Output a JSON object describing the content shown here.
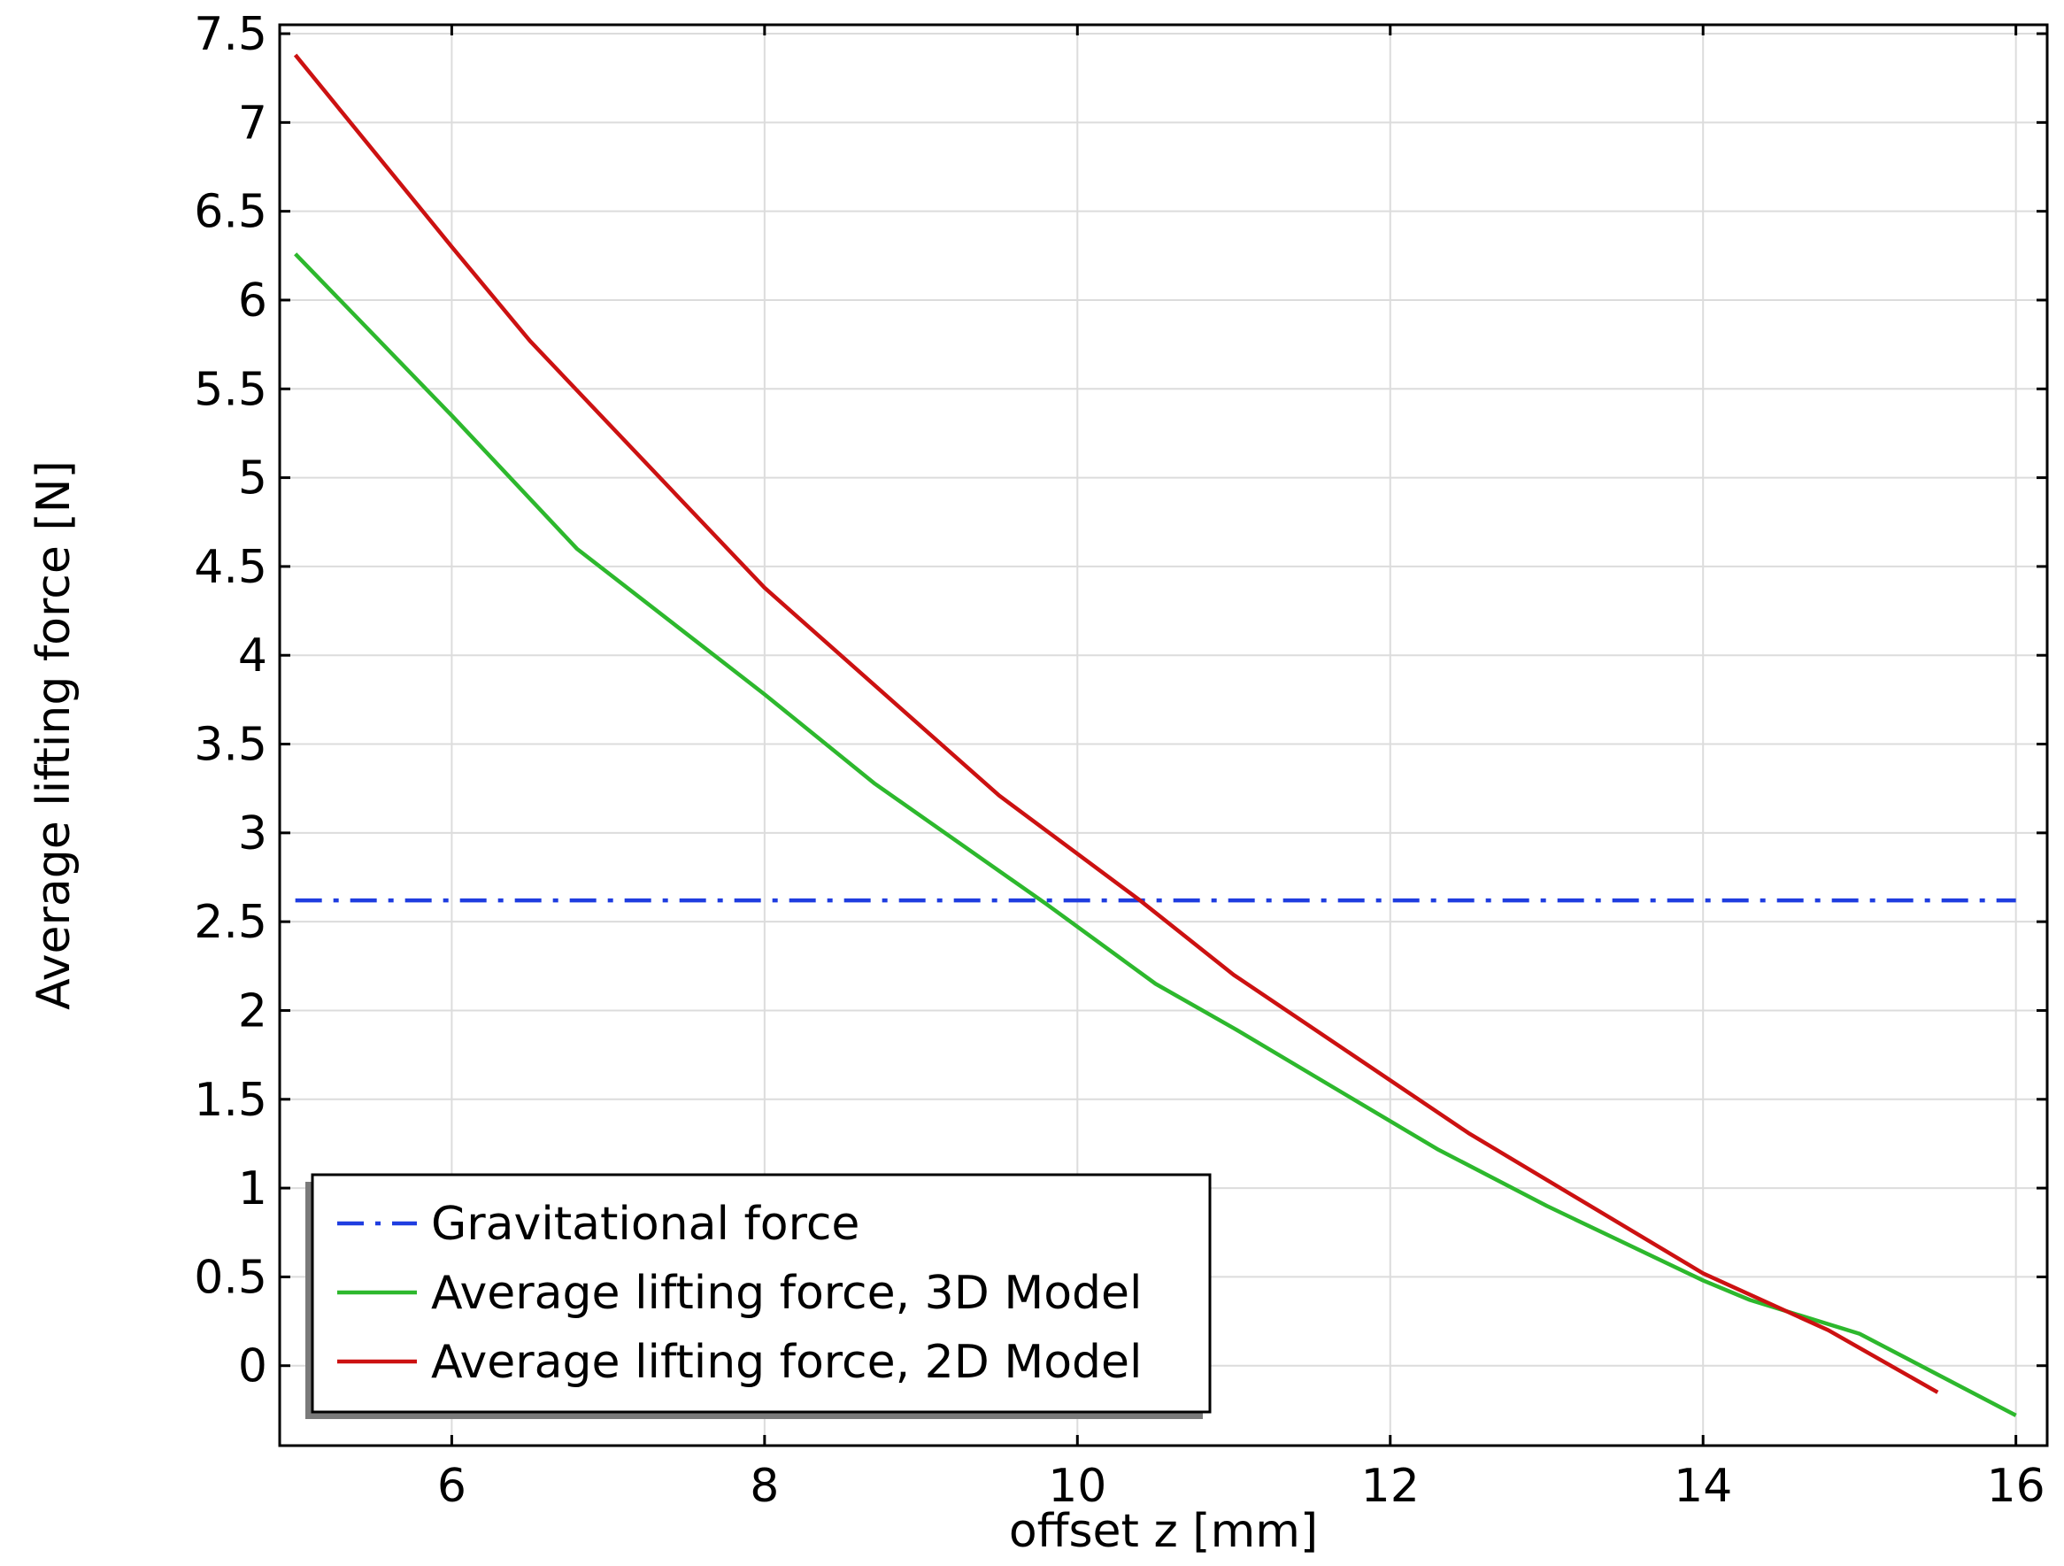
{
  "chart_data": {
    "type": "line",
    "title": "",
    "xlabel": "offset z [mm]",
    "ylabel": "Average lifting force [N]",
    "xlim": [
      4.9,
      16.2
    ],
    "ylim": [
      -0.45,
      7.55
    ],
    "xticks": [
      6,
      8,
      10,
      12,
      14,
      16
    ],
    "xtick_labels": [
      "6",
      "8",
      "10",
      "12",
      "14",
      "16"
    ],
    "yticks": [
      0,
      0.5,
      1,
      1.5,
      2,
      2.5,
      3,
      3.5,
      4,
      4.5,
      5,
      5.5,
      6,
      6.5,
      7,
      7.5
    ],
    "ytick_labels": [
      "0",
      "0.5",
      "1",
      "1.5",
      "2",
      "2.5",
      "3",
      "3.5",
      "4",
      "4.5",
      "5",
      "5.5",
      "6",
      "6.5",
      "7",
      "7.5"
    ],
    "grid": true,
    "legend_position": "bottom-left",
    "series": [
      {
        "name": "Gravitational force",
        "color": "#1f3de0",
        "style": "dash-dot",
        "x": [
          5,
          16
        ],
        "y": [
          2.62,
          2.62
        ]
      },
      {
        "name": "Average lifting force, 3D Model",
        "color": "#2db82d",
        "style": "solid",
        "x": [
          5,
          6,
          6.8,
          8,
          8.7,
          9.8,
          10.5,
          11,
          12.3,
          13,
          14,
          14.3,
          15,
          16
        ],
        "y": [
          6.26,
          5.35,
          4.6,
          3.78,
          3.28,
          2.6,
          2.15,
          1.9,
          1.22,
          0.9,
          0.48,
          0.37,
          0.18,
          -0.28
        ]
      },
      {
        "name": "Average lifting force, 2D Model",
        "color": "#cc1111",
        "style": "solid",
        "x": [
          5,
          6,
          6.5,
          8,
          9.5,
          10.4,
          11,
          12.5,
          14,
          14.8,
          15.5
        ],
        "y": [
          7.38,
          6.3,
          5.77,
          4.38,
          3.21,
          2.62,
          2.2,
          1.31,
          0.52,
          0.2,
          -0.15
        ]
      }
    ]
  }
}
